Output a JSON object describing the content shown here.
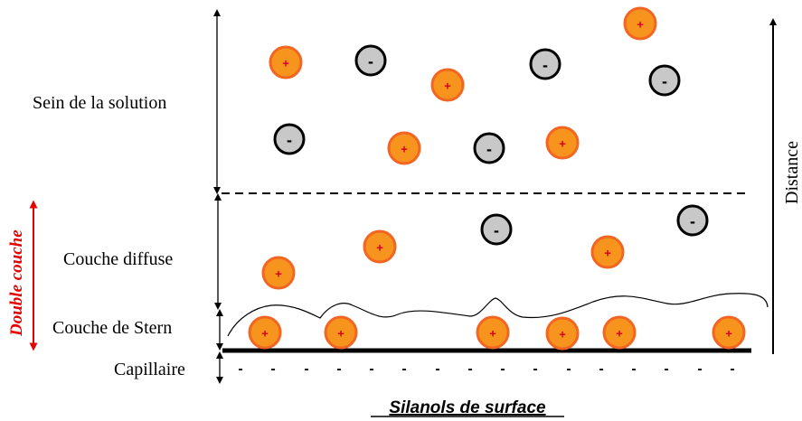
{
  "labels": {
    "bulk": "Sein de la solution",
    "diffuse": "Couche diffuse",
    "stern": "Couche de Stern",
    "capillary": "Capillaire",
    "double_layer": "Double couche",
    "distance": "Distance",
    "silanols": "Silanols de surface"
  },
  "ions": {
    "cation_sign": "+",
    "anion_sign": "-",
    "cation_color": "#f7941d",
    "cation_ring": "#f26522",
    "anion_color": "#c8c8c8",
    "anion_ring": "#000000"
  },
  "surface_charge": "-",
  "colors": {
    "double_layer_arrow": "#e60000"
  }
}
